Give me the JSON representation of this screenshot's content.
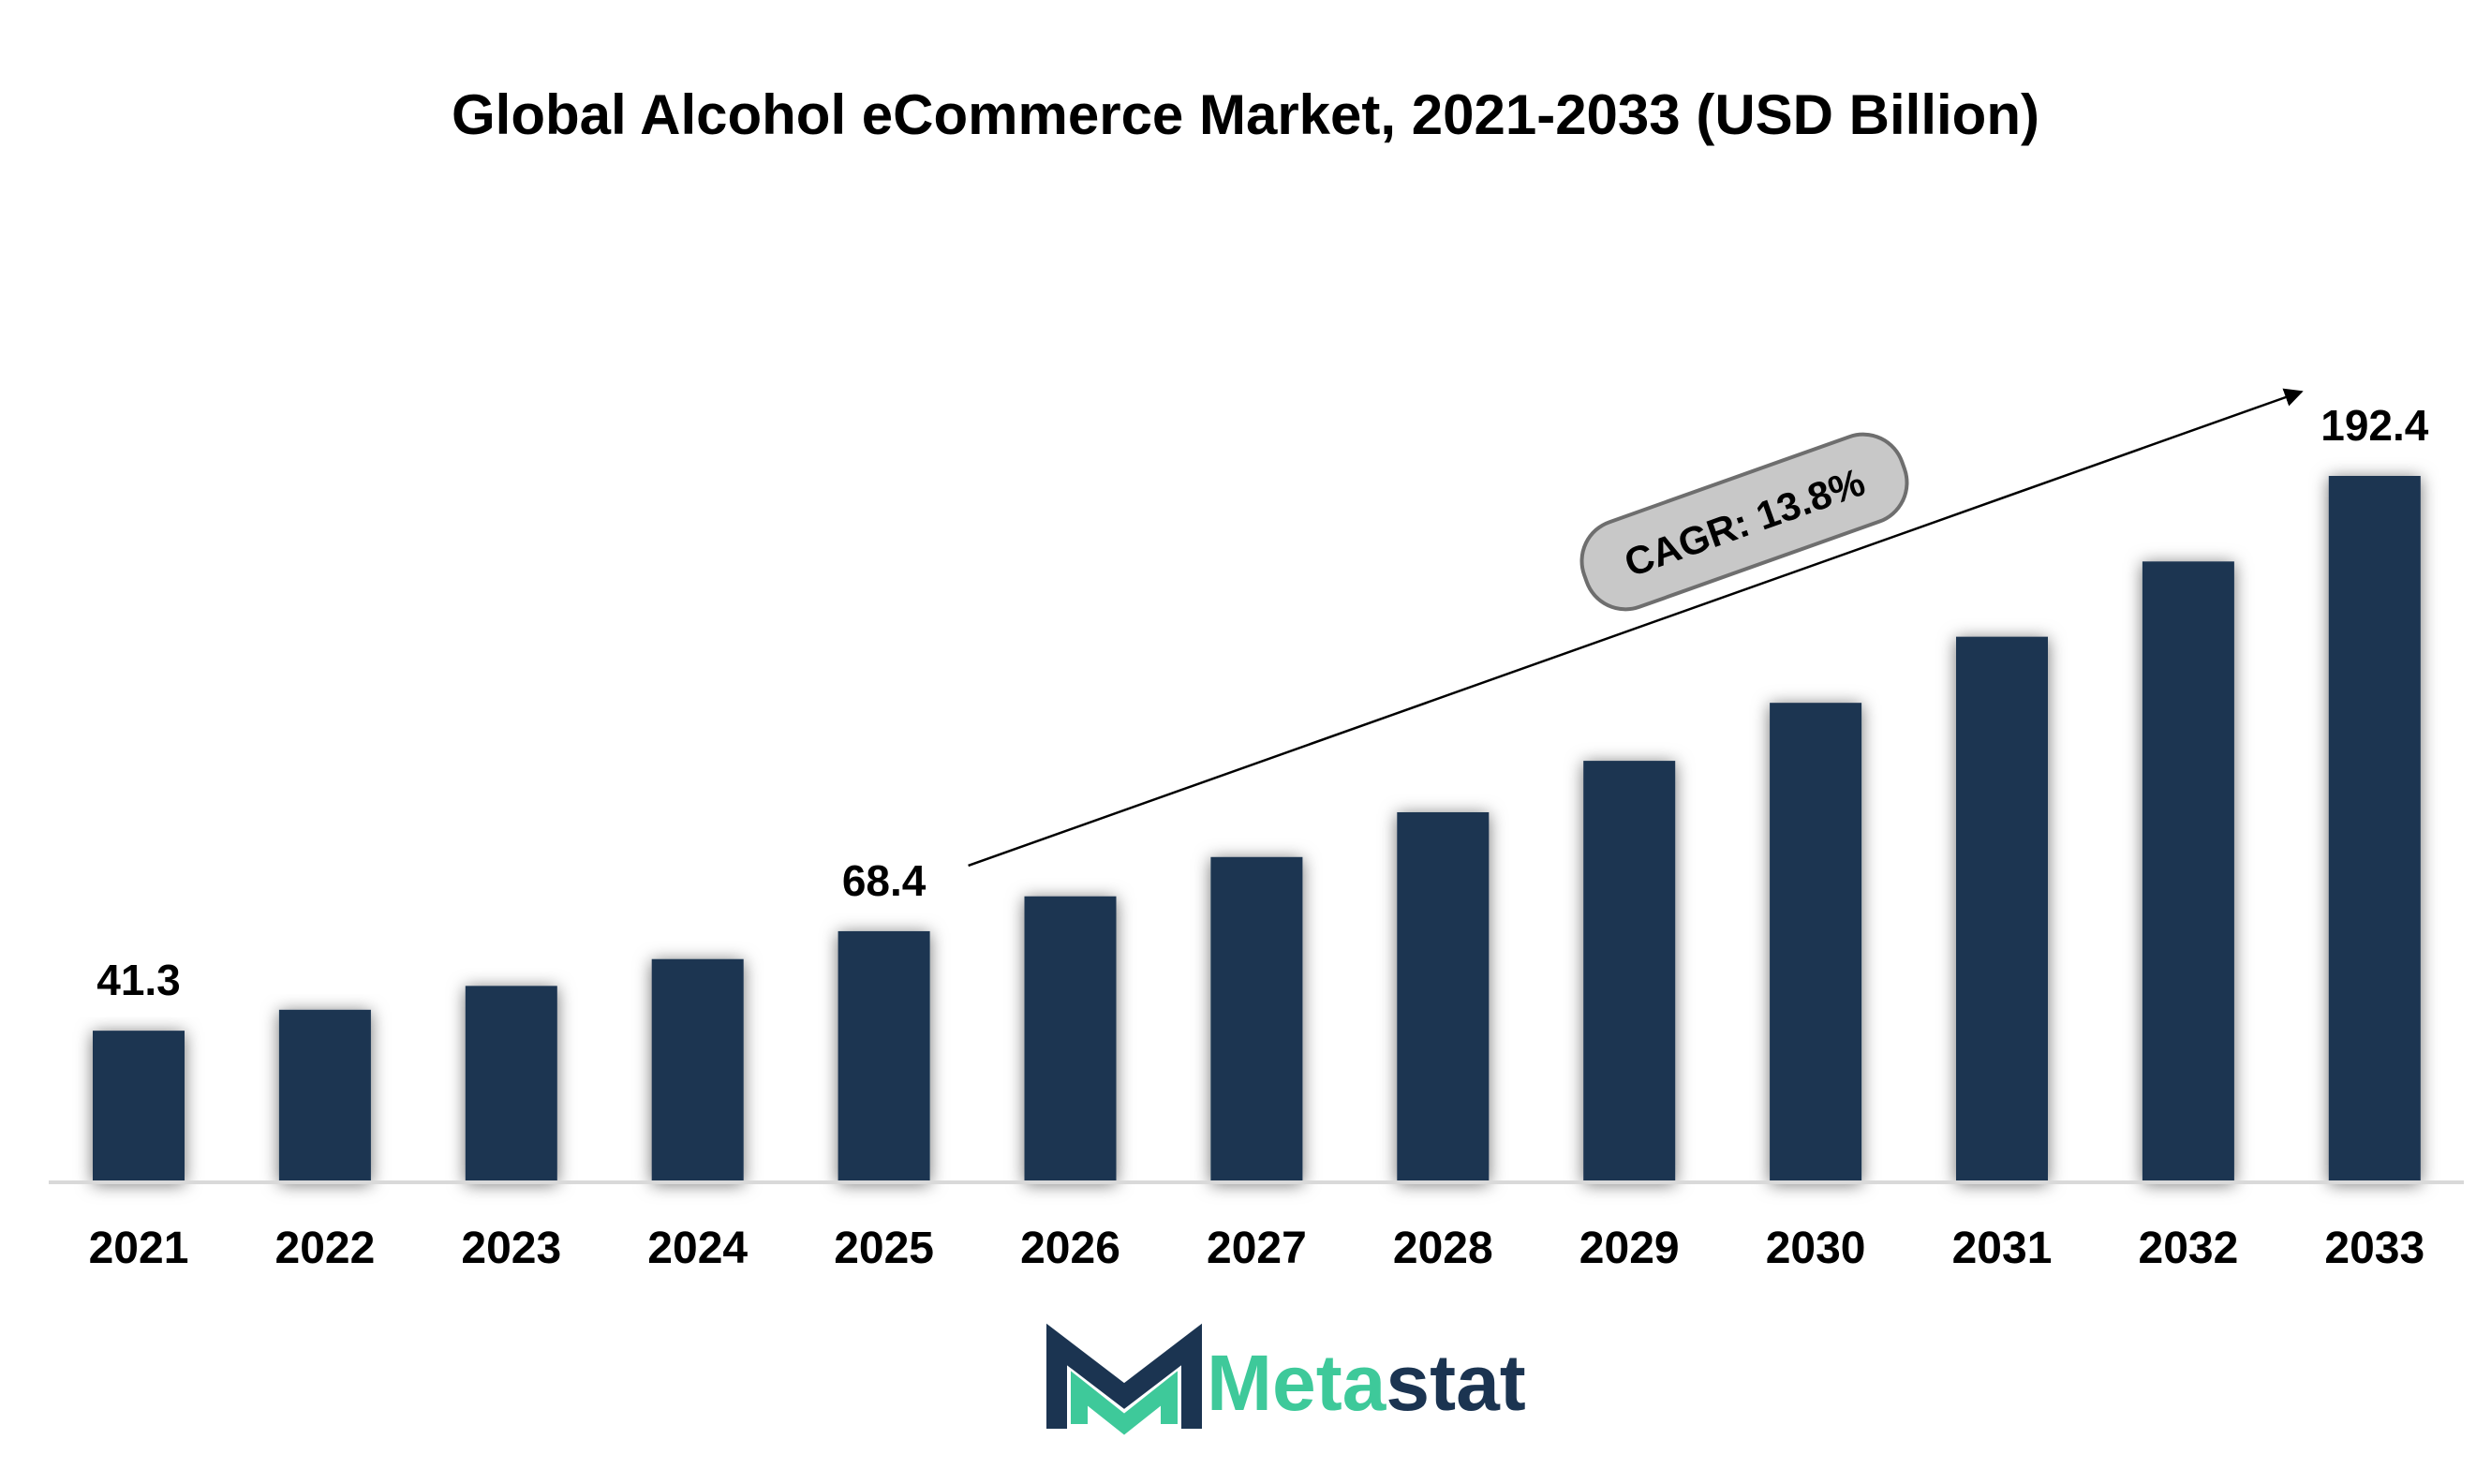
{
  "chart_data": {
    "type": "bar",
    "title": "Global Alcohol eCommerce Market, 2021-2033 (USD Billion)",
    "xlabel": "",
    "ylabel": "",
    "categories": [
      "2021",
      "2022",
      "2023",
      "2024",
      "2025",
      "2026",
      "2027",
      "2028",
      "2029",
      "2030",
      "2031",
      "2032",
      "2033"
    ],
    "values": [
      41.3,
      47.0,
      53.5,
      60.8,
      68.4,
      77.9,
      88.6,
      100.8,
      114.8,
      130.6,
      148.6,
      169.1,
      192.4
    ],
    "data_labels": [
      {
        "category": "2021",
        "text": "41.3"
      },
      {
        "category": "2025",
        "text": "68.4"
      },
      {
        "category": "2033",
        "text": "192.4"
      }
    ],
    "ylim": [
      0,
      192.4
    ],
    "grid": false,
    "legend": "none",
    "annotation": {
      "text": "CAGR: 13.8%",
      "from": "2025",
      "to": "2033"
    },
    "bar_color": "#1b3451"
  },
  "logo": {
    "text_part1": "Meta",
    "text_part2": "stat",
    "color1": "#3ec99a",
    "color2": "#1b3451"
  }
}
